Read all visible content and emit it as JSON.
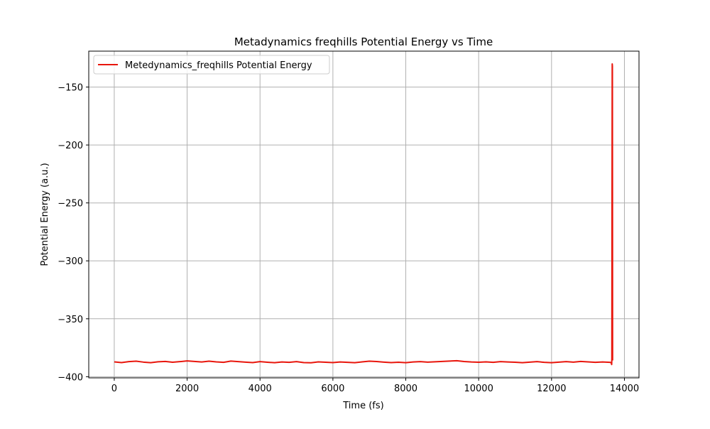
{
  "chart_data": {
    "type": "line",
    "title": "Metadynamics freqhills Potential Energy vs Time",
    "xlabel": "Time (fs)",
    "ylabel": "Potential Energy (a.u.)",
    "xlim": [
      -700,
      14400
    ],
    "ylim": [
      -401,
      -119
    ],
    "xticks": [
      0,
      2000,
      4000,
      6000,
      8000,
      10000,
      12000,
      14000
    ],
    "yticks": [
      -400,
      -350,
      -300,
      -250,
      -200,
      -150
    ],
    "grid": true,
    "legend_position": "top-left",
    "series": [
      {
        "name": "Metedynamics_freqhills Potential Energy",
        "color": "#e8160c",
        "x": [
          0,
          200,
          400,
          600,
          800,
          1000,
          1200,
          1400,
          1600,
          1800,
          2000,
          2200,
          2400,
          2600,
          2800,
          3000,
          3200,
          3400,
          3600,
          3800,
          4000,
          4200,
          4400,
          4600,
          4800,
          5000,
          5200,
          5400,
          5600,
          5800,
          6000,
          6200,
          6400,
          6600,
          6800,
          7000,
          7200,
          7400,
          7600,
          7800,
          8000,
          8200,
          8400,
          8600,
          8800,
          9000,
          9200,
          9400,
          9600,
          9800,
          10000,
          10200,
          10400,
          10600,
          10800,
          11000,
          11200,
          11400,
          11600,
          11800,
          12000,
          12200,
          12400,
          12600,
          12800,
          13000,
          13200,
          13400,
          13600,
          13640,
          13650,
          13655,
          13660,
          13665,
          13670,
          13675
        ],
        "y": [
          -387.2,
          -387.8,
          -387.0,
          -386.6,
          -387.4,
          -387.9,
          -387.1,
          -386.8,
          -387.5,
          -387.0,
          -386.4,
          -386.8,
          -387.3,
          -386.6,
          -387.2,
          -387.6,
          -386.5,
          -387.0,
          -387.4,
          -387.8,
          -387.0,
          -387.5,
          -387.9,
          -387.3,
          -387.6,
          -387.0,
          -387.8,
          -388.0,
          -387.2,
          -387.5,
          -387.8,
          -387.3,
          -387.6,
          -387.9,
          -387.2,
          -386.6,
          -386.9,
          -387.4,
          -387.8,
          -387.5,
          -387.9,
          -387.3,
          -387.0,
          -387.4,
          -387.1,
          -386.8,
          -386.5,
          -386.2,
          -386.9,
          -387.3,
          -387.5,
          -387.2,
          -387.6,
          -387.0,
          -387.3,
          -387.5,
          -387.9,
          -387.4,
          -387.0,
          -387.6,
          -387.9,
          -387.4,
          -387.0,
          -387.4,
          -386.8,
          -387.2,
          -387.6,
          -387.3,
          -387.6,
          -387.9,
          -389.5,
          -384.0,
          -243.0,
          -130.0,
          -132.0,
          -386.0
        ]
      }
    ]
  }
}
